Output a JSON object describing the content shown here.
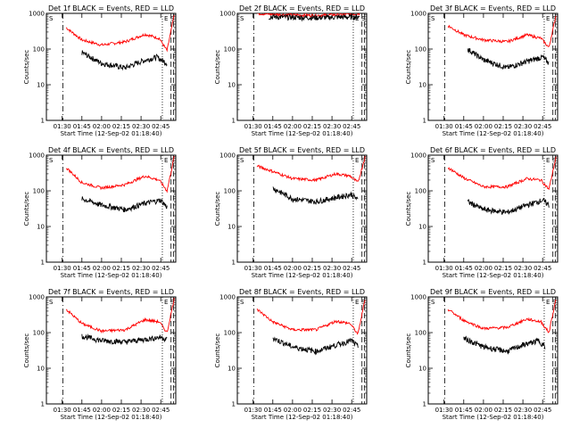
{
  "chart_data": {
    "type": "line",
    "layout": "3x3",
    "ylabel": "Counts/sec",
    "xlabel": "Start Time (12-Sep-02 01:18:40)",
    "yscale": "log",
    "ylim": [
      1,
      1000
    ],
    "y_ticks": [
      "1",
      "10",
      "100",
      "1000"
    ],
    "x_ticks": [
      "01:30",
      "01:45",
      "02:00",
      "02:15",
      "02:30",
      "02:45"
    ],
    "legend": "in title: BLACK = Events, RED = LLD",
    "colors": {
      "events": "#000000",
      "lld": "#ff0000"
    },
    "panels": [
      {
        "title": "Det 1f BLACK = Events, RED = LLD",
        "markers": [
          "S",
          "E",
          "S"
        ],
        "events": [
          [
            1.75,
            80
          ],
          [
            2.0,
            40
          ],
          [
            2.3,
            30
          ],
          [
            2.5,
            45
          ],
          [
            2.7,
            60
          ],
          [
            2.83,
            40
          ]
        ],
        "lld": [
          [
            1.55,
            400
          ],
          [
            1.75,
            180
          ],
          [
            2.0,
            130
          ],
          [
            2.3,
            160
          ],
          [
            2.55,
            260
          ],
          [
            2.73,
            200
          ],
          [
            2.83,
            90
          ],
          [
            2.92,
            900
          ]
        ]
      },
      {
        "title": "Det 2f BLACK = Events, RED = LLD",
        "markers": [
          "S",
          "E",
          "S"
        ],
        "events": [
          [
            1.7,
            800
          ],
          [
            2.0,
            780
          ],
          [
            2.3,
            760
          ],
          [
            2.6,
            790
          ],
          [
            2.85,
            800
          ]
        ],
        "lld": [
          [
            1.55,
            1000
          ],
          [
            1.7,
            950
          ],
          [
            2.0,
            900
          ],
          [
            2.3,
            880
          ],
          [
            2.6,
            920
          ],
          [
            2.85,
            980
          ]
        ]
      },
      {
        "title": "Det 3f BLACK = Events, RED = LLD",
        "markers": [
          "S",
          "E",
          "S"
        ],
        "events": [
          [
            1.8,
            100
          ],
          [
            2.0,
            50
          ],
          [
            2.3,
            30
          ],
          [
            2.55,
            45
          ],
          [
            2.75,
            60
          ],
          [
            2.83,
            40
          ]
        ],
        "lld": [
          [
            1.55,
            450
          ],
          [
            1.75,
            250
          ],
          [
            2.0,
            180
          ],
          [
            2.3,
            160
          ],
          [
            2.55,
            250
          ],
          [
            2.73,
            200
          ],
          [
            2.83,
            110
          ],
          [
            2.92,
            900
          ]
        ]
      },
      {
        "title": "Det 4f BLACK = Events, RED = LLD",
        "markers": [
          "S",
          "E",
          "S"
        ],
        "events": [
          [
            1.75,
            60
          ],
          [
            2.0,
            40
          ],
          [
            2.3,
            30
          ],
          [
            2.55,
            45
          ],
          [
            2.75,
            55
          ],
          [
            2.83,
            35
          ]
        ],
        "lld": [
          [
            1.55,
            450
          ],
          [
            1.75,
            170
          ],
          [
            2.0,
            120
          ],
          [
            2.3,
            150
          ],
          [
            2.55,
            260
          ],
          [
            2.73,
            200
          ],
          [
            2.83,
            100
          ],
          [
            2.92,
            900
          ]
        ]
      },
      {
        "title": "Det 5f BLACK = Events, RED = LLD",
        "markers": [
          "S",
          "E",
          "S"
        ],
        "events": [
          [
            1.75,
            120
          ],
          [
            2.0,
            60
          ],
          [
            2.3,
            50
          ],
          [
            2.55,
            65
          ],
          [
            2.75,
            80
          ],
          [
            2.83,
            55
          ]
        ],
        "lld": [
          [
            1.55,
            500
          ],
          [
            1.75,
            350
          ],
          [
            2.0,
            220
          ],
          [
            2.3,
            200
          ],
          [
            2.55,
            300
          ],
          [
            2.73,
            260
          ],
          [
            2.83,
            170
          ],
          [
            2.92,
            900
          ]
        ]
      },
      {
        "title": "Det 6f BLACK = Events, RED = LLD",
        "markers": [
          "S",
          "E",
          "S"
        ],
        "events": [
          [
            1.8,
            50
          ],
          [
            2.0,
            30
          ],
          [
            2.3,
            25
          ],
          [
            2.55,
            40
          ],
          [
            2.75,
            55
          ],
          [
            2.83,
            40
          ]
        ],
        "lld": [
          [
            1.55,
            450
          ],
          [
            1.75,
            230
          ],
          [
            2.0,
            130
          ],
          [
            2.3,
            130
          ],
          [
            2.55,
            220
          ],
          [
            2.73,
            200
          ],
          [
            2.83,
            110
          ],
          [
            2.92,
            900
          ]
        ]
      },
      {
        "title": "Det 7f BLACK = Events, RED = LLD",
        "markers": [
          "S",
          "E",
          "S"
        ],
        "events": [
          [
            1.75,
            80
          ],
          [
            2.0,
            60
          ],
          [
            2.3,
            55
          ],
          [
            2.55,
            65
          ],
          [
            2.75,
            75
          ],
          [
            2.83,
            65
          ]
        ],
        "lld": [
          [
            1.55,
            450
          ],
          [
            1.75,
            180
          ],
          [
            2.0,
            110
          ],
          [
            2.3,
            120
          ],
          [
            2.55,
            230
          ],
          [
            2.73,
            200
          ],
          [
            2.83,
            100
          ],
          [
            2.92,
            900
          ]
        ]
      },
      {
        "title": "Det 8f BLACK = Events, RED = LLD",
        "markers": [
          "S",
          "E",
          "S"
        ],
        "events": [
          [
            1.75,
            70
          ],
          [
            2.0,
            40
          ],
          [
            2.3,
            30
          ],
          [
            2.55,
            45
          ],
          [
            2.75,
            60
          ],
          [
            2.83,
            40
          ]
        ],
        "lld": [
          [
            1.55,
            450
          ],
          [
            1.75,
            200
          ],
          [
            2.0,
            120
          ],
          [
            2.3,
            120
          ],
          [
            2.55,
            210
          ],
          [
            2.73,
            180
          ],
          [
            2.83,
            90
          ],
          [
            2.92,
            900
          ]
        ]
      },
      {
        "title": "Det 9f BLACK = Events, RED = LLD",
        "markers": [
          "S",
          "E",
          "S"
        ],
        "events": [
          [
            1.75,
            70
          ],
          [
            2.0,
            40
          ],
          [
            2.3,
            30
          ],
          [
            2.5,
            45
          ],
          [
            2.7,
            60
          ],
          [
            2.78,
            40
          ]
        ],
        "lld": [
          [
            1.55,
            450
          ],
          [
            1.75,
            220
          ],
          [
            2.0,
            130
          ],
          [
            2.3,
            140
          ],
          [
            2.55,
            240
          ],
          [
            2.73,
            200
          ],
          [
            2.83,
            100
          ],
          [
            2.92,
            900
          ]
        ]
      }
    ]
  }
}
